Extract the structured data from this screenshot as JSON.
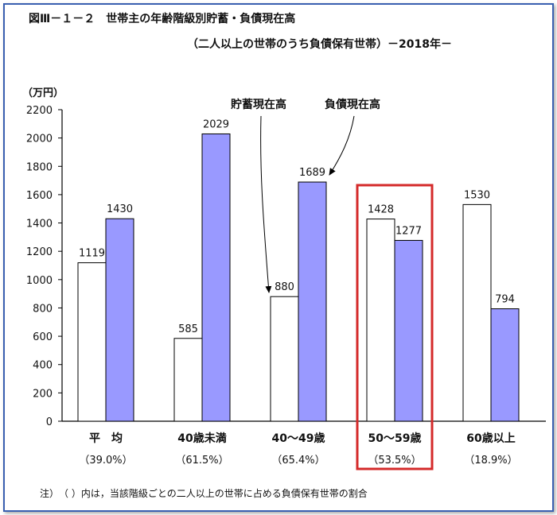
{
  "figure": {
    "title": "図Ⅲ－１－２　世帯主の年齢階級別貯蓄・負債現在高",
    "subtitle": "（二人以上の世帯のうち負債保有世帯）－2018年－",
    "unit": "（万円）",
    "note": "注）　（ ）内は，当該階級ごとの二人以上の世帯に占める負債保有世帯の割合"
  },
  "chart_data": {
    "type": "bar",
    "categories": [
      "平　均",
      "40歳未満",
      "40～49歳",
      "50～59歳",
      "60歳以上"
    ],
    "category_notes": [
      "（39.0%）",
      "（61.5%）",
      "（65.4%）",
      "（53.5%）",
      "（18.9%）"
    ],
    "series": [
      {
        "name": "貯蓄現在高",
        "values": [
          1119,
          585,
          880,
          1428,
          1530
        ],
        "color": "#ffffff"
      },
      {
        "name": "負債現在高",
        "values": [
          1430,
          2029,
          1689,
          1277,
          794
        ],
        "color": "#9999ff"
      }
    ],
    "ylim": [
      0,
      2200
    ],
    "yticks": [
      0,
      200,
      400,
      600,
      800,
      1000,
      1200,
      1400,
      1600,
      1800,
      2000,
      2200
    ],
    "ylabel": "（万円）",
    "xlabel": "",
    "grid": false,
    "highlight_category": "50～59歳",
    "highlight_color": "#d42a2a"
  }
}
